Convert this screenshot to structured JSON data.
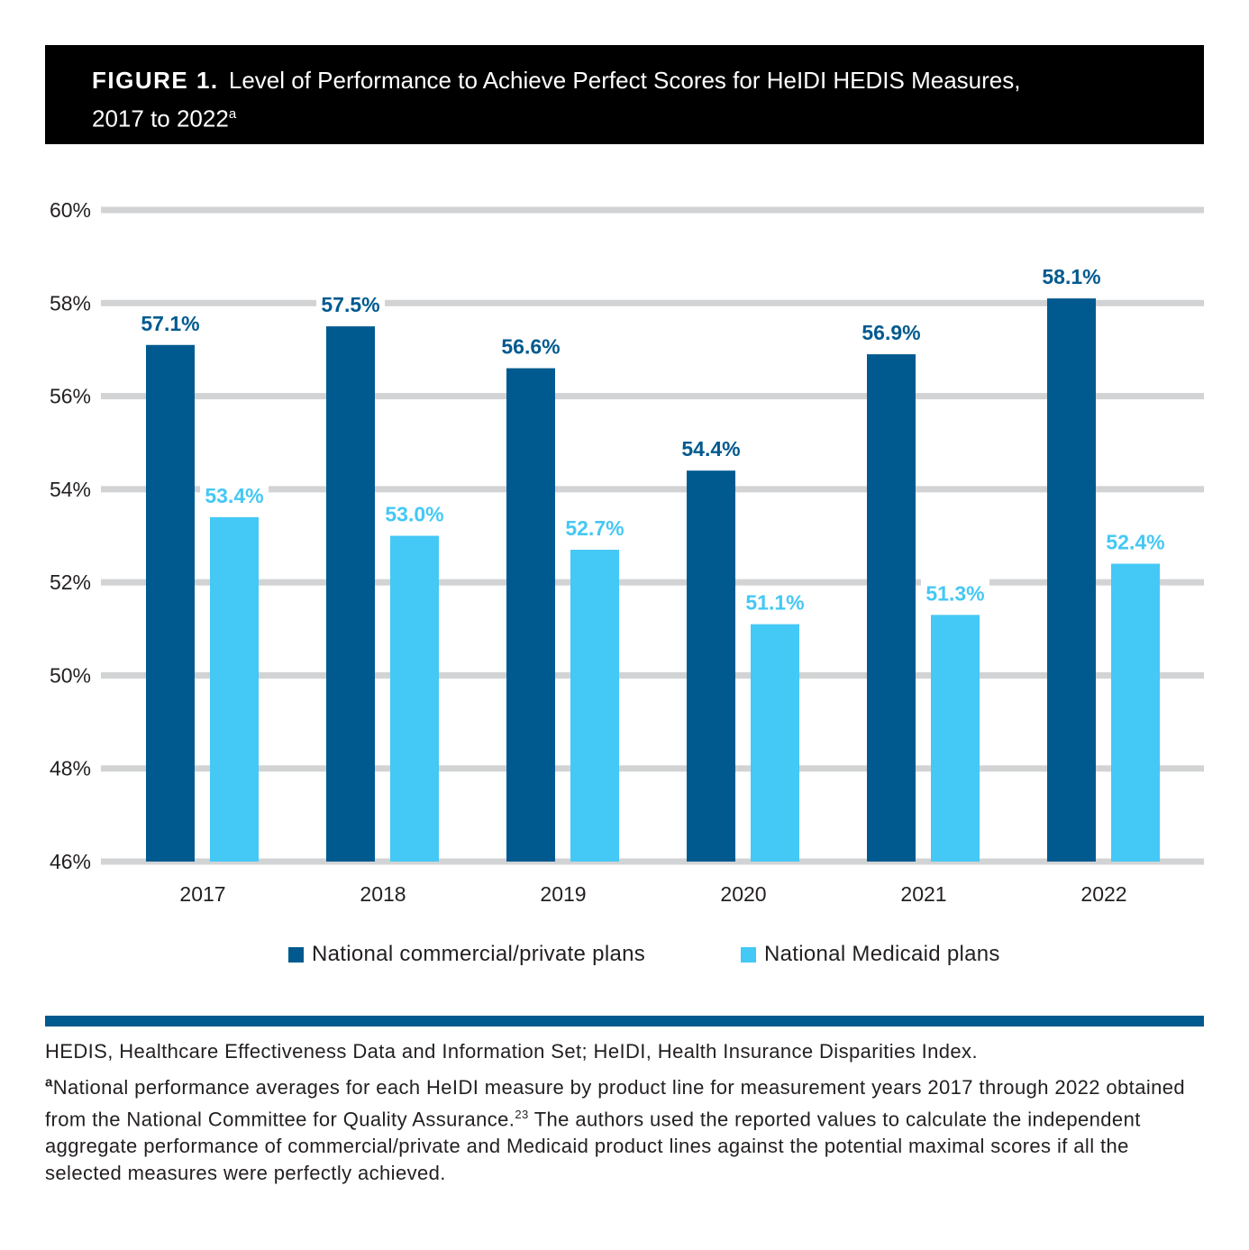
{
  "figure": {
    "label": "FIGURE 1.",
    "title_line1": "Level of Performance to Achieve Perfect Scores for HeIDI HEDIS Measures,",
    "title_line2": "2017 to 2022",
    "title_footnote_marker": "a"
  },
  "colors": {
    "commercial": "#005a8f",
    "medicaid": "#44c8f5",
    "grid": "#d1d3d4",
    "header_bg": "#000000",
    "divider": "#005a8f"
  },
  "chart_data": {
    "type": "bar",
    "categories": [
      "2017",
      "2018",
      "2019",
      "2020",
      "2021",
      "2022"
    ],
    "series": [
      {
        "name": "National commercial/private plans",
        "values": [
          57.1,
          57.5,
          56.6,
          54.4,
          56.9,
          58.1
        ]
      },
      {
        "name": "National Medicaid plans",
        "values": [
          53.4,
          53.0,
          52.7,
          51.1,
          51.3,
          52.4
        ]
      }
    ],
    "value_labels": [
      [
        "57.1%",
        "57.5%",
        "56.6%",
        "54.4%",
        "56.9%",
        "58.1%"
      ],
      [
        "53.4%",
        "53.0%",
        "52.7%",
        "51.1%",
        "51.3%",
        "52.4%"
      ]
    ],
    "ylim": [
      46,
      60
    ],
    "y_ticks": [
      46,
      48,
      50,
      52,
      54,
      56,
      58,
      60
    ],
    "y_tick_labels": [
      "46%",
      "48%",
      "50%",
      "52%",
      "54%",
      "56%",
      "58%",
      "60%"
    ],
    "grid": true,
    "legend_position": "bottom"
  },
  "footnotes": {
    "abbreviations": "HEDIS, Healthcare Effectiveness Data and Information Set; HeIDI, Health Insurance Disparities Index.",
    "note_marker": "a",
    "note_part1": "National performance averages for each HeIDI measure by product line for measurement years 2017 through 2022 obtained from the National Committee for Quality Assurance.",
    "note_ref": "23",
    "note_part2": " The authors used the reported values to calculate the independent aggregate performance of commercial/private and Medicaid product lines against the potential maximal scores if all the selected measures were perfectly achieved."
  }
}
